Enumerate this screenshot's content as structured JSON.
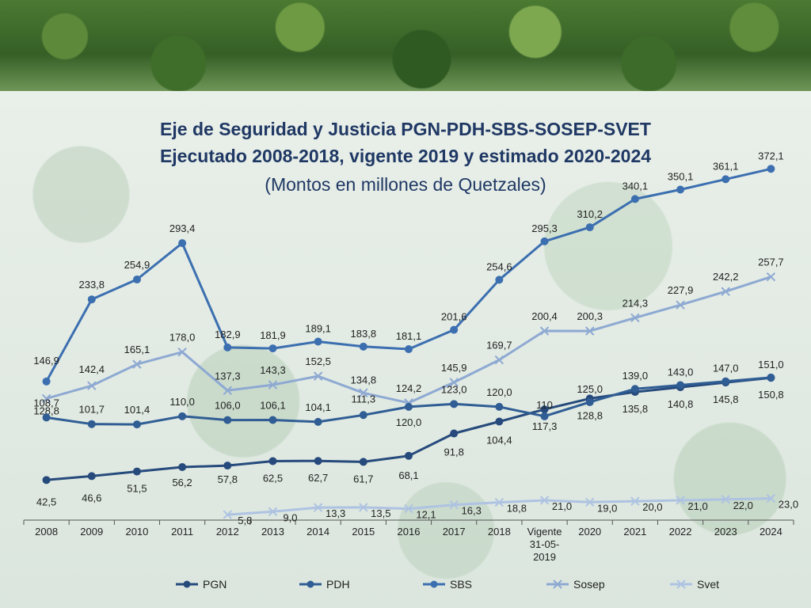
{
  "colors": {
    "PGN": "#264a7c",
    "PDH": "#2f5d94",
    "SBS": "#3c6fb0",
    "Sosep": "#8ea9d2",
    "Svet": "#aec3e2",
    "title": "#1f3864"
  },
  "chart_data": {
    "type": "line",
    "title": "Eje de Seguridad y Justicia PGN-PDH-SBS-SOSEP-SVET",
    "subtitle": "Ejecutado 2008-2018, vigente 2019 y estimado 2020-2024",
    "subtitle2": "(Montos en millones de Quetzales)",
    "categories": [
      "2008",
      "2009",
      "2010",
      "2011",
      "2012",
      "2013",
      "2014",
      "2015",
      "2016",
      "2017",
      "2018",
      "Vigente 31-05-2019",
      "2020",
      "2021",
      "2022",
      "2023",
      "2024"
    ],
    "legend_position": "bottom",
    "grid": false,
    "ylim": [
      0,
      400
    ],
    "series": [
      {
        "name": "PGN",
        "values": [
          42.5,
          46.6,
          51.5,
          56.2,
          57.8,
          62.5,
          62.7,
          61.7,
          68.1,
          91.8,
          104.4,
          117.3,
          128.8,
          135.8,
          140.8,
          145.8,
          150.8
        ],
        "labels": [
          "42,5",
          "46,6",
          "51,5",
          "56,2",
          "57,8",
          "62,5",
          "62,7",
          "61,7",
          "68,1",
          "91,8",
          "104,4",
          "117,3",
          "128,8",
          "135,8",
          "140,8",
          "145,8",
          "150,8"
        ]
      },
      {
        "name": "PDH",
        "values": [
          108.7,
          101.7,
          101.4,
          110.0,
          106.0,
          106.1,
          104.1,
          111.3,
          120.0,
          123.0,
          120.0,
          110,
          125.0,
          139.0,
          143.0,
          147.0,
          151.0
        ],
        "labels": [
          "108,7",
          "101,7",
          "101,4",
          "110,0",
          "106,0",
          "106,1",
          "104,1",
          "111,3",
          "120,0",
          "123,0",
          "120,0",
          "110",
          "125,0",
          "139,0",
          "143,0",
          "147,0",
          "151,0"
        ]
      },
      {
        "name": "SBS",
        "values": [
          146.9,
          233.8,
          254.9,
          293.4,
          182.9,
          181.9,
          189.1,
          183.8,
          181.1,
          201.6,
          254.6,
          295.3,
          310.2,
          340.1,
          350.1,
          361.1,
          372.1
        ],
        "labels": [
          "146,9",
          "233,8",
          "254,9",
          "293,4",
          "182,9",
          "181,9",
          "189,1",
          "183,8",
          "181,1",
          "201,6",
          "254,6",
          "295,3",
          "310,2",
          "340,1",
          "350,1",
          "361,1",
          "372,1"
        ]
      },
      {
        "name": "Sosep",
        "values": [
          128.8,
          142.4,
          165.1,
          178.0,
          137.3,
          143.3,
          152.5,
          134.8,
          124.2,
          145.9,
          169.7,
          200.4,
          200.3,
          214.3,
          227.9,
          242.2,
          257.7
        ],
        "labels": [
          "128,8",
          "142,4",
          "165,1",
          "178,0",
          "137,3",
          "143,3",
          "152,5",
          "134,8",
          "124,2",
          "145,9",
          "169,7",
          "200,4",
          "200,3",
          "214,3",
          "227,9",
          "242,2",
          "257,7"
        ]
      },
      {
        "name": "Svet",
        "values": [
          null,
          null,
          null,
          null,
          5.8,
          9.0,
          13.3,
          13.5,
          12.1,
          16.3,
          18.8,
          21.0,
          19.0,
          20.0,
          21.0,
          22.0,
          23.0
        ],
        "labels": [
          "",
          "",
          "",
          "",
          "5,8",
          "9,0",
          "13,3",
          "13,5",
          "12,1",
          "16,3",
          "18,8",
          "21,0",
          "19,0",
          "20,0",
          "21,0",
          "22,0",
          "23,0"
        ]
      }
    ]
  }
}
